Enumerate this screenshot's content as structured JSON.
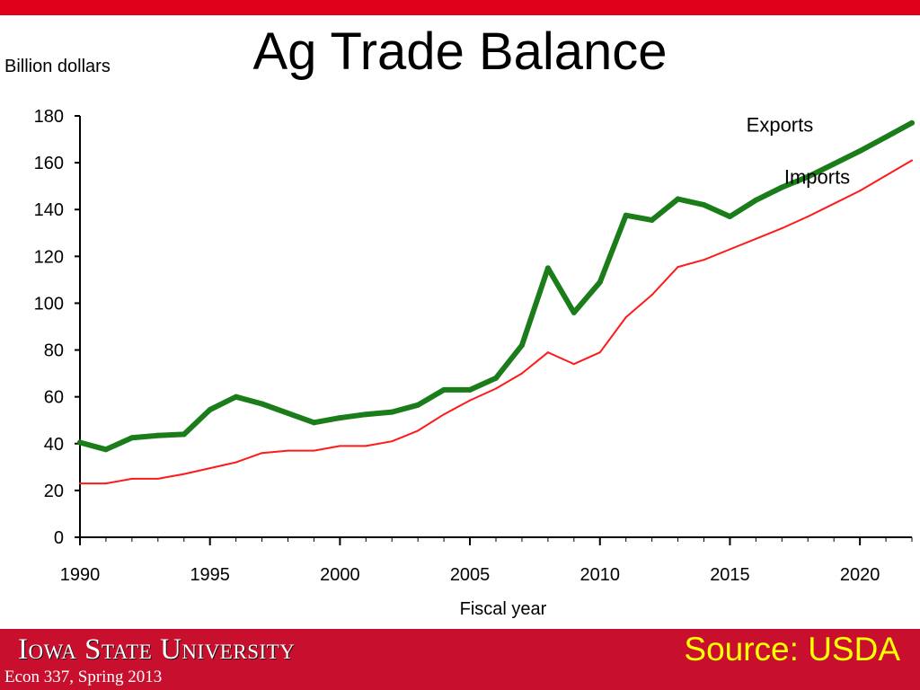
{
  "slide": {
    "title": "Ag Trade Balance",
    "footer_brand": "Iowa State University",
    "footer_course": "Econ 337, Spring 2013",
    "footer_source": "Source: USDA",
    "colors": {
      "accent": "#e0001b",
      "footer": "#c8102e",
      "source_text": "#ffff00"
    }
  },
  "chart_data": {
    "type": "line",
    "ylabel": "Billion dollars",
    "xlabel": "Fiscal year",
    "xlim": [
      1990,
      2022
    ],
    "ylim": [
      0,
      180
    ],
    "x_ticks": [
      1990,
      1995,
      2000,
      2005,
      2010,
      2015,
      2020
    ],
    "y_ticks": [
      0,
      20,
      40,
      60,
      80,
      100,
      120,
      140,
      160,
      180
    ],
    "grid": false,
    "x": [
      1990,
      1991,
      1992,
      1993,
      1994,
      1995,
      1996,
      1997,
      1998,
      1999,
      2000,
      2001,
      2002,
      2003,
      2004,
      2005,
      2006,
      2007,
      2008,
      2009,
      2010,
      2011,
      2012,
      2013,
      2014,
      2015,
      2016,
      2017,
      2018,
      2019,
      2020,
      2021,
      2022
    ],
    "series": [
      {
        "name": "Exports",
        "color": "#1a7d1a",
        "values": [
          40.5,
          37.5,
          42.5,
          43.5,
          44,
          54.5,
          60,
          57,
          53,
          49,
          51,
          52.5,
          53.5,
          56.5,
          63,
          63,
          68,
          82,
          115,
          96,
          109,
          137.5,
          135.5,
          144.5,
          142,
          137,
          144,
          149.5,
          154,
          159.5,
          165,
          171,
          177
        ]
      },
      {
        "name": "Imports",
        "color": "#ff1a1a",
        "values": [
          23,
          23,
          25,
          25,
          27,
          29.5,
          32,
          36,
          37,
          37,
          39,
          39,
          41,
          45.5,
          52.5,
          58.5,
          63.5,
          70,
          79,
          74,
          79,
          94,
          103.5,
          115.5,
          118.5,
          123,
          127.5,
          132,
          137,
          142.5,
          148,
          154.5,
          161
        ]
      }
    ]
  }
}
